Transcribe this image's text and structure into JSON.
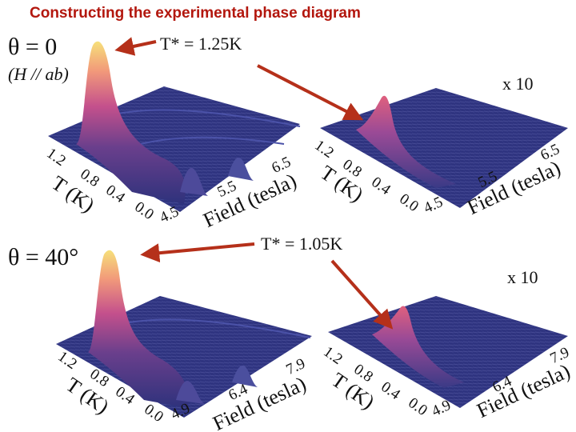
{
  "title": "Constructing the experimental phase diagram",
  "panels": {
    "top": {
      "theta_label": "θ = 0",
      "orientation_label": "(H // ab)",
      "tstar_label": "T* = 1.25K",
      "scale_label": "x 10",
      "left_plot": {
        "temperature_axis_label": "T (K)",
        "temperature_ticks": [
          "1.2",
          "0.8",
          "0.4",
          "0.0"
        ],
        "field_axis_label": "Field (tesla)",
        "field_ticks": [
          "4.5",
          "5.5",
          "6.5"
        ]
      },
      "right_plot": {
        "temperature_axis_label": "T (K)",
        "temperature_ticks": [
          "1.2",
          "0.8",
          "0.4",
          "0.0"
        ],
        "field_axis_label": "Field (tesla)",
        "field_ticks": [
          "4.5",
          "5.5",
          "6.5"
        ]
      }
    },
    "bottom": {
      "theta_label": "θ = 40°",
      "tstar_label": "T* = 1.05K",
      "scale_label": "x 10",
      "left_plot": {
        "temperature_axis_label": "T (K)",
        "temperature_ticks": [
          "1.2",
          "0.8",
          "0.4",
          "0.0"
        ],
        "field_axis_label": "Field (tesla)",
        "field_ticks": [
          "4.9",
          "6.4",
          "7.9"
        ]
      },
      "right_plot": {
        "temperature_axis_label": "T (K)",
        "temperature_ticks": [
          "1.2",
          "0.8",
          "0.4",
          "0.0"
        ],
        "field_axis_label": "Field (tesla)",
        "field_ticks": [
          "4.9",
          "6.4",
          "7.9"
        ]
      }
    }
  },
  "colors": {
    "title": "#b3170e",
    "arrow": "#b5301a",
    "surface_base": "#2e327c",
    "surface_mid": "#b84a8e",
    "surface_peak": "#f6e07a"
  }
}
